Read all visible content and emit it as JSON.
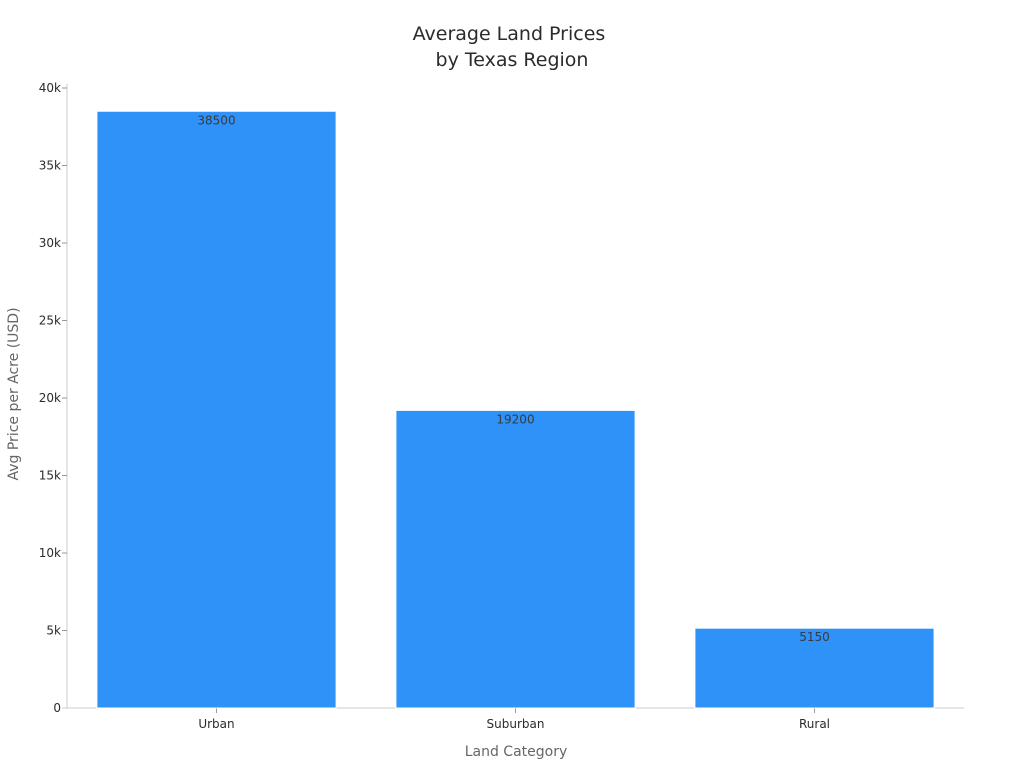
{
  "chart_data": {
    "type": "bar",
    "title": "Average Land Prices\nby Texas Region",
    "title_lines": [
      "Average Land Prices",
      "by Texas Region"
    ],
    "xlabel": "Land Category",
    "ylabel": "Avg Price per Acre (USD)",
    "categories": [
      "Urban",
      "Suburban",
      "Rural"
    ],
    "values": [
      38500,
      19200,
      5150
    ],
    "data_labels": [
      "38500",
      "19200",
      "5150"
    ],
    "ylim": [
      0,
      40000
    ],
    "yticks": [
      0,
      5000,
      10000,
      15000,
      20000,
      25000,
      30000,
      35000,
      40000
    ],
    "ytick_labels": [
      "0",
      "5k",
      "10k",
      "15k",
      "20k",
      "25k",
      "30k",
      "35k",
      "40k"
    ],
    "grid": false,
    "legend": "none",
    "bar_color": "#2e92f8",
    "axis_color": "#cccccc"
  }
}
